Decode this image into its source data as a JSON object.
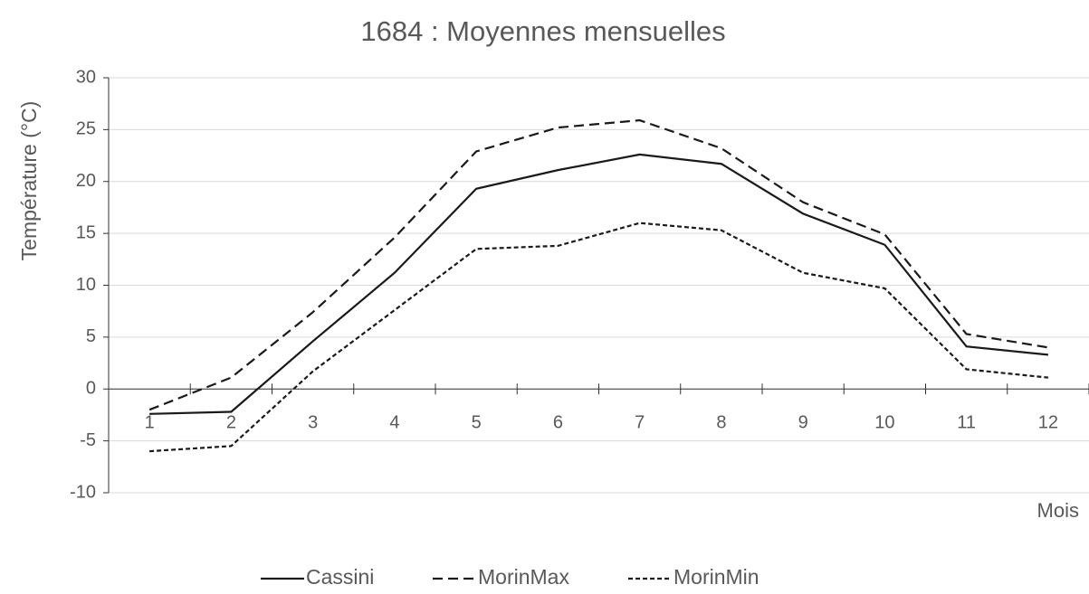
{
  "chart_data": {
    "type": "line",
    "title": "1684 : Moyennes mensuelles",
    "y_label": "Température (°C)",
    "x_label": "Mois",
    "categories": [
      "1",
      "2",
      "3",
      "4",
      "5",
      "6",
      "7",
      "8",
      "9",
      "10",
      "11",
      "12"
    ],
    "series": [
      {
        "name": "Cassini",
        "color": "#1a1a1a",
        "dash": "solid",
        "values": [
          -2.4,
          -2.2,
          4.6,
          11.2,
          19.3,
          21.1,
          22.6,
          21.7,
          16.9,
          13.9,
          4.1,
          3.3
        ]
      },
      {
        "name": "MorinMax",
        "color": "#1a1a1a",
        "dash": "dashed",
        "values": [
          -2.0,
          1.1,
          7.4,
          14.6,
          22.9,
          25.2,
          25.9,
          23.2,
          18.0,
          14.9,
          5.3,
          4.0
        ]
      },
      {
        "name": "MorinMin",
        "color": "#1a1a1a",
        "dash": "dotted",
        "values": [
          -6.0,
          -5.5,
          1.7,
          7.6,
          13.5,
          13.8,
          16.0,
          15.3,
          11.2,
          9.7,
          1.9,
          1.1
        ]
      }
    ],
    "ylim": [
      -10,
      30
    ],
    "yticks": [
      -10,
      -5,
      0,
      5,
      10,
      15,
      20,
      25,
      30
    ],
    "grid": true,
    "legend": "bottom"
  }
}
